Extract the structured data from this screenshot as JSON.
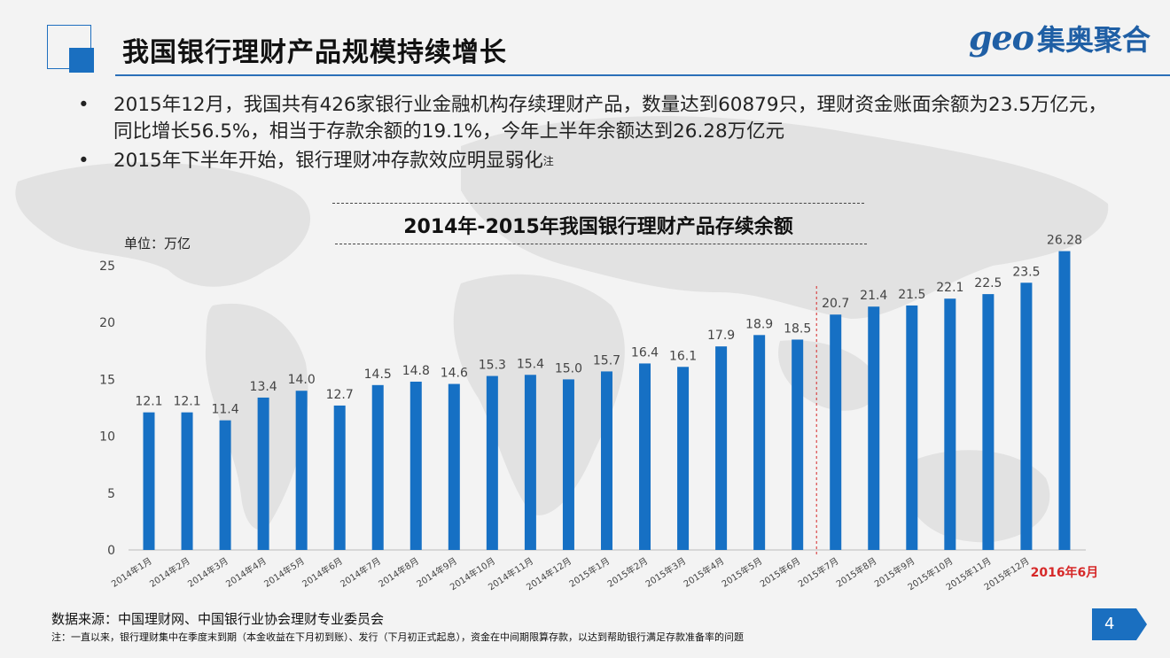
{
  "header": {
    "title": "我国银行理财产品规模持续增长",
    "logo_latin": "geo",
    "logo_cn": "集奥聚合"
  },
  "bullets": [
    {
      "marker": "•",
      "text": "2015年12月，我国共有426家银行业金融机构存续理财产品，数量达到60879只，理财资金账面余额为23.5万亿元，同比增长56.5%，相当于存款余额的19.1%，今年上半年余额达到26.28万亿元",
      "sup": ""
    },
    {
      "marker": "•",
      "text": "2015年下半年开始，银行理财冲存款效应明显弱化",
      "sup": "注"
    }
  ],
  "chart_data": {
    "type": "bar",
    "title": "2014年-2015年我国银行理财产品存续余额",
    "unit_label": "单位：万亿",
    "ylim": [
      0,
      25
    ],
    "yticks": [
      0,
      5,
      10,
      15,
      20,
      25
    ],
    "categories": [
      "2014年1月",
      "2014年2月",
      "2014年3月",
      "2014年4月",
      "2014年5月",
      "2014年6月",
      "2014年7月",
      "2014年8月",
      "2014年9月",
      "2014年10月",
      "2014年11月",
      "2014年12月",
      "2015年1月",
      "2015年2月",
      "2015年3月",
      "2015年4月",
      "2015年5月",
      "2015年6月",
      "2015年7月",
      "2015年8月",
      "2015年9月",
      "2015年10月",
      "2015年11月",
      "2015年12月",
      "2016年6月"
    ],
    "values": [
      12.1,
      12.1,
      11.4,
      13.4,
      14.0,
      12.7,
      14.5,
      14.8,
      14.6,
      15.3,
      15.4,
      15.0,
      15.7,
      16.4,
      16.1,
      17.9,
      18.9,
      18.5,
      20.7,
      21.4,
      21.5,
      22.1,
      22.5,
      23.5,
      26.28
    ],
    "value_labels": [
      "12.1",
      "12.1",
      "11.4",
      "13.4",
      "14.0",
      "12.7",
      "14.5",
      "14.8",
      "14.6",
      "15.3",
      "15.4",
      "15.0",
      "15.7",
      "16.4",
      "16.1",
      "17.9",
      "18.9",
      "18.5",
      "20.7",
      "21.4",
      "21.5",
      "22.1",
      "22.5",
      "23.5",
      "26.28"
    ],
    "highlight_index": 24,
    "divider_after_index": 17,
    "bar_color": "#1670c4",
    "highlight_color": "#d62828",
    "divider_color": "#d62828"
  },
  "footer": {
    "source": "数据来源：中国理财网、中国银行业协会理财专业委员会",
    "note": "注：一直以来，银行理财集中在季度末到期（本金收益在下月初到账）、发行（下月初正式起息），资金在中间期限算存款，以达到帮助银行满足存款准备率的问题",
    "page": "4"
  },
  "colors": {
    "accent": "#1a6fc0",
    "title_rule": "#2a6fb8"
  }
}
